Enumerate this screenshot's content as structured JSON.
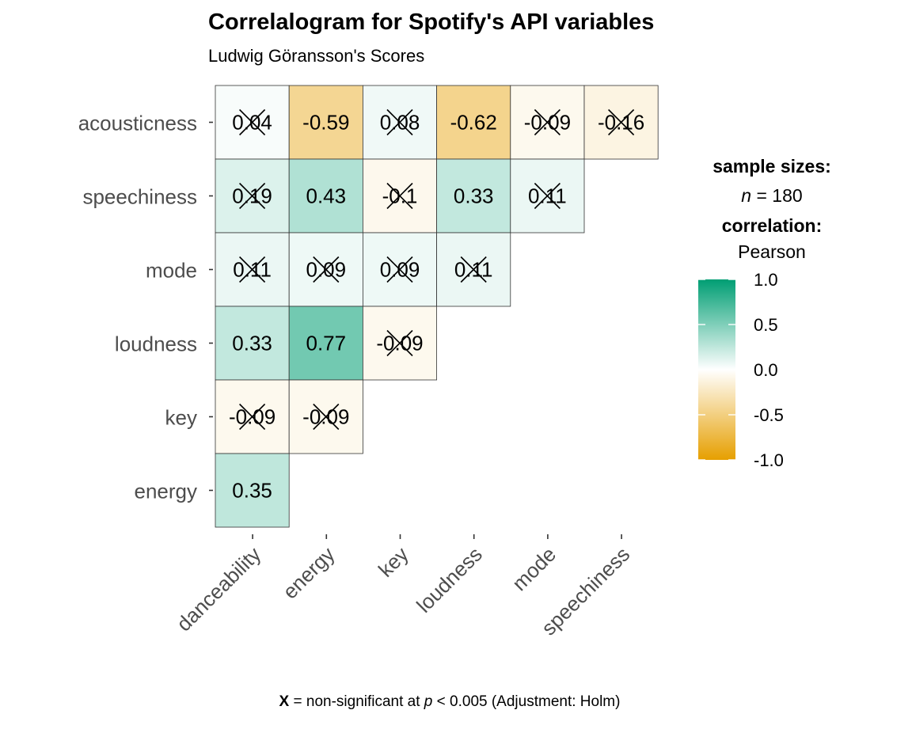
{
  "chart_data": {
    "type": "heatmap",
    "title": "Correlalogram for Spotify's API variables",
    "subtitle": "Ludwig Göransson's Scores",
    "x_categories": [
      "danceability",
      "energy",
      "key",
      "loudness",
      "mode",
      "speechiness"
    ],
    "y_categories": [
      "acousticness",
      "speechiness",
      "mode",
      "loudness",
      "key",
      "energy"
    ],
    "cells": [
      {
        "row": "acousticness",
        "col": "danceability",
        "value": 0.04,
        "label": "0.04",
        "significant": false
      },
      {
        "row": "acousticness",
        "col": "energy",
        "value": -0.59,
        "label": "-0.59",
        "significant": true
      },
      {
        "row": "acousticness",
        "col": "key",
        "value": 0.08,
        "label": "0.08",
        "significant": false
      },
      {
        "row": "acousticness",
        "col": "loudness",
        "value": -0.62,
        "label": "-0.62",
        "significant": true
      },
      {
        "row": "acousticness",
        "col": "mode",
        "value": -0.09,
        "label": "-0.09",
        "significant": false
      },
      {
        "row": "acousticness",
        "col": "speechiness",
        "value": -0.16,
        "label": "-0.16",
        "significant": false
      },
      {
        "row": "speechiness",
        "col": "danceability",
        "value": 0.19,
        "label": "0.19",
        "significant": false
      },
      {
        "row": "speechiness",
        "col": "energy",
        "value": 0.43,
        "label": "0.43",
        "significant": true
      },
      {
        "row": "speechiness",
        "col": "key",
        "value": -0.1,
        "label": "-0.1",
        "significant": false
      },
      {
        "row": "speechiness",
        "col": "loudness",
        "value": 0.33,
        "label": "0.33",
        "significant": true
      },
      {
        "row": "speechiness",
        "col": "mode",
        "value": 0.11,
        "label": "0.11",
        "significant": false
      },
      {
        "row": "mode",
        "col": "danceability",
        "value": 0.11,
        "label": "0.11",
        "significant": false
      },
      {
        "row": "mode",
        "col": "energy",
        "value": 0.09,
        "label": "0.09",
        "significant": false
      },
      {
        "row": "mode",
        "col": "key",
        "value": 0.09,
        "label": "0.09",
        "significant": false
      },
      {
        "row": "mode",
        "col": "loudness",
        "value": 0.11,
        "label": "0.11",
        "significant": false
      },
      {
        "row": "loudness",
        "col": "danceability",
        "value": 0.33,
        "label": "0.33",
        "significant": true
      },
      {
        "row": "loudness",
        "col": "energy",
        "value": 0.77,
        "label": "0.77",
        "significant": true
      },
      {
        "row": "loudness",
        "col": "key",
        "value": -0.09,
        "label": "-0.09",
        "significant": false
      },
      {
        "row": "key",
        "col": "danceability",
        "value": -0.09,
        "label": "-0.09",
        "significant": false
      },
      {
        "row": "key",
        "col": "energy",
        "value": -0.09,
        "label": "-0.09",
        "significant": false
      },
      {
        "row": "energy",
        "col": "danceability",
        "value": 0.35,
        "label": "0.35",
        "significant": true
      }
    ],
    "legend": {
      "sample_title": "sample sizes:",
      "n_symbol": "n",
      "n_text": " = 180",
      "corr_title": "correlation:",
      "method": "Pearson",
      "range": [
        -1,
        1
      ],
      "ticks": [
        1.0,
        0.5,
        0.0,
        -0.5,
        -1.0
      ],
      "tick_labels": [
        "1.0",
        "0.5",
        "0.0",
        "-0.5",
        "-1.0"
      ],
      "placement": "right"
    },
    "colors": {
      "high": "#009E73",
      "mid": "#FFFFFF",
      "low": "#E69F00"
    },
    "caption": {
      "symbol": "X",
      "part1": " = non-significant at ",
      "p_symbol": "p",
      "part2": " < 0.005 (Adjustment: Holm)"
    }
  }
}
